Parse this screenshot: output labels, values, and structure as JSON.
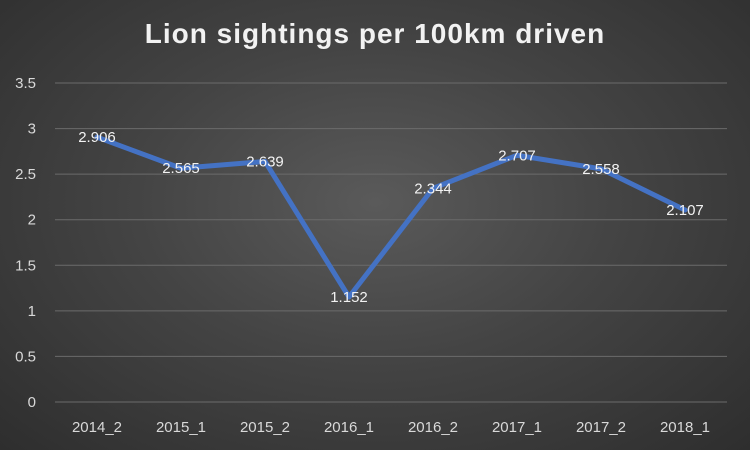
{
  "chart_data": {
    "type": "line",
    "title": "Lion sightings per 100km driven",
    "categories": [
      "2014_2",
      "2015_1",
      "2015_2",
      "2016_1",
      "2016_2",
      "2017_1",
      "2017_2",
      "2018_1"
    ],
    "series": [
      {
        "values": [
          2.906,
          2.565,
          2.639,
          1.152,
          2.344,
          2.707,
          2.558,
          2.107
        ],
        "color": "#4472c4"
      }
    ],
    "data_labels": [
      "2.906",
      "2.565",
      "2.639",
      "1.152",
      "2.344",
      "2.707",
      "2.558",
      "2.107"
    ],
    "y_ticks": [
      "0",
      "0.5",
      "1",
      "1.5",
      "2",
      "2.5",
      "3",
      "3.5"
    ],
    "ylim": [
      0,
      3.5
    ],
    "grid": true,
    "legend": "none",
    "colors": {
      "background": "#404040",
      "grid": "#6b6b6b",
      "text": "#d9d9d9"
    }
  }
}
